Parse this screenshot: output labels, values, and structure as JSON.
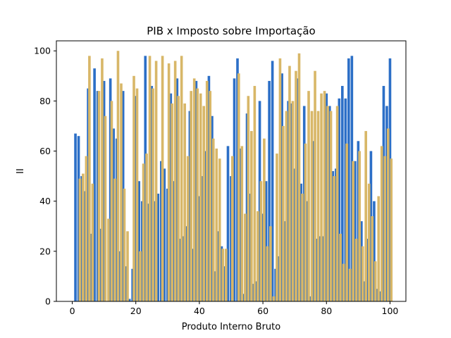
{
  "chart_data": {
    "type": "bar",
    "title": "PIB x Imposto sobre Importação",
    "xlabel": "Produto Interno Bruto",
    "ylabel": "II",
    "xlim": [
      -5,
      105
    ],
    "ylim": [
      0,
      104
    ],
    "xticks": [
      0,
      20,
      40,
      60,
      80,
      100
    ],
    "yticks": [
      0,
      20,
      40,
      60,
      80,
      100
    ],
    "grid": false,
    "legend": "none",
    "series": [
      {
        "color": "#2c6fc7",
        "x": [
          1,
          2,
          3,
          4,
          5,
          6,
          7,
          8,
          9,
          10,
          12,
          13,
          14,
          15,
          16,
          17,
          18,
          19,
          20,
          21,
          22,
          23,
          24,
          25,
          26,
          27,
          28,
          29,
          30,
          31,
          32,
          33,
          34,
          35,
          36,
          37,
          38,
          39,
          40,
          41,
          42,
          43,
          44,
          45,
          46,
          47,
          48,
          49,
          50,
          51,
          52,
          53,
          54,
          55,
          56,
          57,
          58,
          59,
          60,
          61,
          62,
          63,
          64,
          65,
          66,
          67,
          68,
          69,
          70,
          71,
          72,
          73,
          74,
          75,
          76,
          77,
          78,
          79,
          80,
          81,
          82,
          83,
          84,
          85,
          86,
          87,
          88,
          89,
          90,
          91,
          92,
          93,
          94,
          95,
          96,
          97,
          98,
          99,
          100
        ],
        "values": [
          67,
          66,
          50,
          44,
          85,
          27,
          93,
          84,
          29,
          88,
          89,
          69,
          65,
          20,
          84,
          14,
          1,
          13,
          82,
          48,
          40,
          98,
          39,
          86,
          40,
          43,
          56,
          53,
          45,
          83,
          48,
          89,
          25,
          26,
          30,
          76,
          21,
          88,
          42,
          50,
          60,
          90,
          74,
          12,
          28,
          22,
          14,
          62,
          50,
          89,
          97,
          61,
          3,
          75,
          43,
          7,
          8,
          80,
          35,
          48,
          88,
          96,
          13,
          18,
          91,
          32,
          80,
          79,
          53,
          89,
          47,
          78,
          40,
          2,
          64,
          25,
          26,
          26,
          83,
          78,
          52,
          53,
          81,
          86,
          81,
          97,
          98,
          56,
          64,
          32,
          8,
          25,
          60,
          40,
          5,
          4,
          86,
          78,
          97
        ]
      },
      {
        "color": "#d8b768",
        "x": [
          2.4,
          3.4,
          4.4,
          5.4,
          6.4,
          8.4,
          9.4,
          10.4,
          11.4,
          12.4,
          13.4,
          14.4,
          15.4,
          16.4,
          17.4,
          19.4,
          20.4,
          21.4,
          22.4,
          23.4,
          24.4,
          25.4,
          26.4,
          28.4,
          30.4,
          31.4,
          32.4,
          33.4,
          34.4,
          35.4,
          36.4,
          37.4,
          38.4,
          39.4,
          40.4,
          41.4,
          42.4,
          43.4,
          44.4,
          45.4,
          46.4,
          47.4,
          48.4,
          50.4,
          52.4,
          53.4,
          54.4,
          55.4,
          56.4,
          57.4,
          58.4,
          59.4,
          60.4,
          61.4,
          62.4,
          63.4,
          64.4,
          65.4,
          66.4,
          67.4,
          68.4,
          69.4,
          70.4,
          71.4,
          72.4,
          73.4,
          74.4,
          75.4,
          76.4,
          77.4,
          78.4,
          79.4,
          80.4,
          81.4,
          82.4,
          83.4,
          84.4,
          85.4,
          86.4,
          87.4,
          88.4,
          89.4,
          90.4,
          91.4,
          92.4,
          93.4,
          94.4,
          95.4,
          96.4,
          97.4,
          98.4,
          99.4,
          100.4
        ],
        "values": [
          49,
          51,
          58,
          98,
          47,
          84,
          97,
          74,
          33,
          80,
          49,
          100,
          87,
          45,
          28,
          90,
          85,
          20,
          55,
          59,
          98,
          85,
          96,
          98,
          95,
          79,
          96,
          82,
          98,
          79,
          58,
          84,
          89,
          85,
          83,
          78,
          88,
          84,
          65,
          61,
          57,
          21,
          21,
          58,
          91,
          62,
          35,
          82,
          68,
          86,
          36,
          48,
          65,
          22,
          30,
          2,
          59,
          97,
          70,
          76,
          94,
          80,
          92,
          99,
          43,
          63,
          84,
          76,
          92,
          76,
          83,
          84,
          78,
          76,
          50,
          78,
          27,
          15,
          63,
          13,
          56,
          25,
          60,
          22,
          68,
          47,
          34,
          16,
          42,
          62,
          58,
          69,
          57
        ]
      }
    ]
  }
}
